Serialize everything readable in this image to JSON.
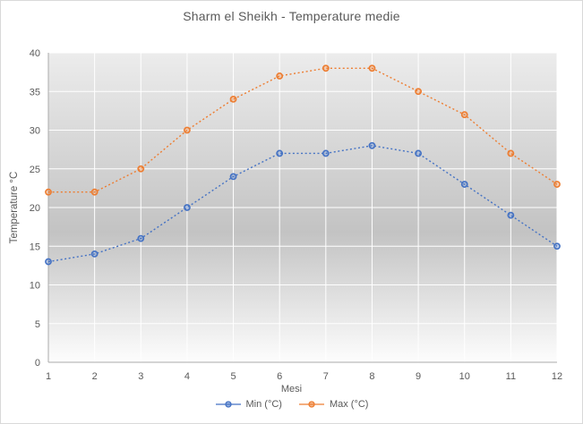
{
  "window": {
    "background": "#ffffff",
    "border_color": "#d9d9d9"
  },
  "chart_data": {
    "type": "line",
    "title": "Sharm el Sheikh - Temperature medie",
    "xlabel": "Mesi",
    "ylabel": "Temperature °C",
    "x": [
      1,
      2,
      3,
      4,
      5,
      6,
      7,
      8,
      9,
      10,
      11,
      12
    ],
    "series": [
      {
        "name": "Min (°C)",
        "color": "#4472C4",
        "values": [
          13,
          14,
          16,
          20,
          24,
          27,
          27,
          28,
          27,
          23,
          19,
          15
        ]
      },
      {
        "name": "Max (°C)",
        "color": "#ED7D31",
        "values": [
          22,
          22,
          25,
          30,
          34,
          37,
          38,
          38,
          35,
          32,
          27,
          23
        ]
      }
    ],
    "ylim": [
      0,
      40
    ],
    "yticks": [
      0,
      5,
      10,
      15,
      20,
      25,
      30,
      35,
      40
    ],
    "grid": true,
    "line_style": "dotted",
    "marker": "circle-ring",
    "legend_position": "bottom",
    "gridline_color": "#ffffff",
    "axis_line_color": "#ababab",
    "text_color": "#595959",
    "plot_gradient": {
      "top": "#ececec",
      "mid": "#c3c3c3",
      "bottom": "#fdfdfd"
    }
  }
}
